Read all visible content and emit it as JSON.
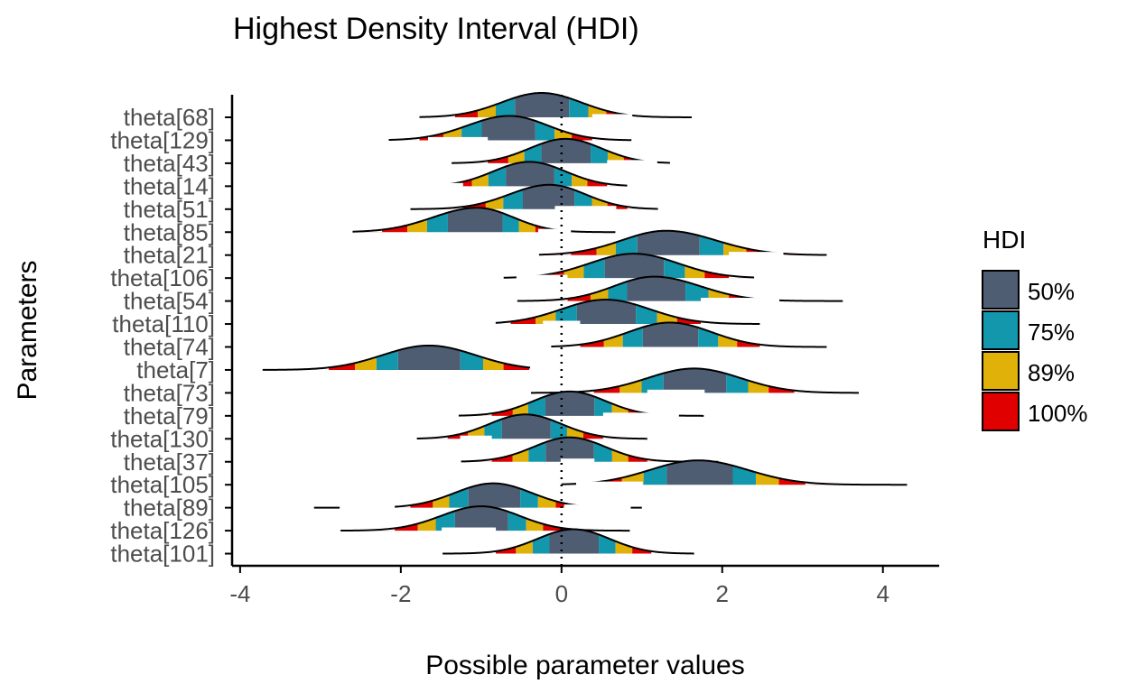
{
  "chart_data": {
    "type": "ridgeline-density",
    "title": "Highest Density Interval (HDI)",
    "xlabel": "Possible parameter values",
    "ylabel": "Parameters",
    "xlim": [
      -4.1,
      4.7
    ],
    "x_ticks": [
      -4,
      -2,
      0,
      2,
      4
    ],
    "x_tick_labels": [
      "-4",
      "-2",
      "0",
      "2",
      "4"
    ],
    "reference_line": {
      "x": 0,
      "style": "dotted"
    },
    "grid": false,
    "legend": {
      "title": "HDI",
      "position": "right",
      "entries": [
        {
          "label": "50%",
          "color": "#4f5d73",
          "prob": 0.5
        },
        {
          "label": "75%",
          "color": "#1397ad",
          "prob": 0.75
        },
        {
          "label": "89%",
          "color": "#e0b109",
          "prob": 0.89
        },
        {
          "label": "100%",
          "color": "#e00000",
          "prob": 1.0
        }
      ]
    },
    "series": [
      {
        "name": "theta[68]",
        "mode": -0.25,
        "sd_left": 0.5,
        "sd_right": 0.5,
        "min": -1.97,
        "max": 1.62
      },
      {
        "name": "theta[129]",
        "mode": -0.65,
        "sd_left": 0.52,
        "sd_right": 0.48,
        "min": -2.15,
        "max": 0.87
      },
      {
        "name": "theta[43]",
        "mode": 0.05,
        "sd_left": 0.45,
        "sd_right": 0.45,
        "min": -1.65,
        "max": 1.35
      },
      {
        "name": "theta[14]",
        "mode": -0.4,
        "sd_left": 0.45,
        "sd_right": 0.45,
        "min": -1.72,
        "max": 1.18
      },
      {
        "name": "theta[51]",
        "mode": -0.15,
        "sd_left": 0.5,
        "sd_right": 0.45,
        "min": -1.88,
        "max": 1.2
      },
      {
        "name": "theta[85]",
        "mode": -1.05,
        "sd_left": 0.55,
        "sd_right": 0.45,
        "min": -2.6,
        "max": 0.67
      },
      {
        "name": "theta[21]",
        "mode": 1.3,
        "sd_left": 0.55,
        "sd_right": 0.62,
        "min": -0.28,
        "max": 3.3
      },
      {
        "name": "theta[106]",
        "mode": 0.9,
        "sd_left": 0.55,
        "sd_right": 0.55,
        "min": -0.72,
        "max": 2.75
      },
      {
        "name": "theta[54]",
        "mode": 1.15,
        "sd_left": 0.5,
        "sd_right": 0.58,
        "min": -0.55,
        "max": 3.5
      },
      {
        "name": "theta[110]",
        "mode": 0.55,
        "sd_left": 0.55,
        "sd_right": 0.55,
        "min": -0.82,
        "max": 2.7
      },
      {
        "name": "theta[74]",
        "mode": 1.35,
        "sd_left": 0.52,
        "sd_right": 0.52,
        "min": -0.22,
        "max": 3.3
      },
      {
        "name": "theta[7]",
        "mode": -1.65,
        "sd_left": 0.58,
        "sd_right": 0.58,
        "min": -3.72,
        "max": -0.14
      },
      {
        "name": "theta[73]",
        "mode": 1.65,
        "sd_left": 0.58,
        "sd_right": 0.58,
        "min": -0.38,
        "max": 3.7
      },
      {
        "name": "theta[79]",
        "mode": 0.1,
        "sd_left": 0.45,
        "sd_right": 0.45,
        "min": -1.28,
        "max": 1.77
      },
      {
        "name": "theta[130]",
        "mode": -0.45,
        "sd_left": 0.45,
        "sd_right": 0.45,
        "min": -1.8,
        "max": 1.45
      },
      {
        "name": "theta[37]",
        "mode": 0.1,
        "sd_left": 0.45,
        "sd_right": 0.45,
        "min": -1.25,
        "max": 1.95
      },
      {
        "name": "theta[105]",
        "mode": 1.7,
        "sd_left": 0.6,
        "sd_right": 0.62,
        "min": 0.0,
        "max": 4.3
      },
      {
        "name": "theta[89]",
        "mode": -0.85,
        "sd_left": 0.48,
        "sd_right": 0.48,
        "min": -3.08,
        "max": 1.0
      },
      {
        "name": "theta[126]",
        "mode": -1.0,
        "sd_left": 0.5,
        "sd_right": 0.48,
        "min": -2.75,
        "max": 0.85
      },
      {
        "name": "theta[101]",
        "mode": 0.15,
        "sd_left": 0.45,
        "sd_right": 0.45,
        "min": -1.48,
        "max": 1.65
      }
    ]
  }
}
